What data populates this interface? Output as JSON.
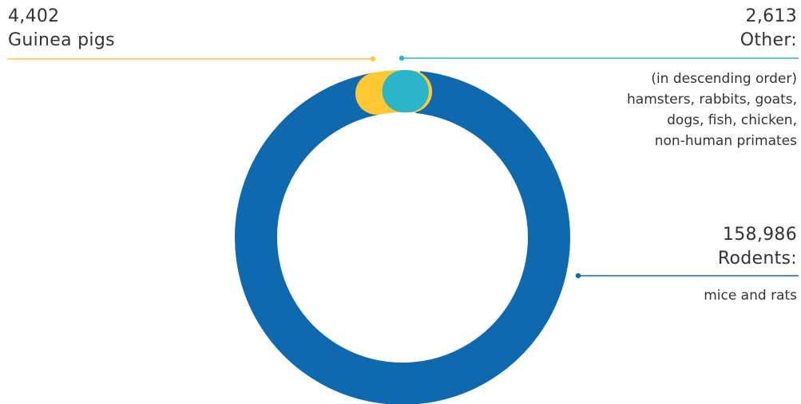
{
  "chart_data": {
    "type": "pie",
    "variant": "donut",
    "slices": [
      {
        "key": "rodents",
        "value": 158986,
        "value_label": "158,986",
        "name": "Rodents:",
        "description": "mice and rats",
        "color": "#0f69af"
      },
      {
        "key": "guinea_pigs",
        "value": 4402,
        "value_label": "4,402",
        "name": "Guinea pigs",
        "color": "#ffc832"
      },
      {
        "key": "other",
        "value": 2613,
        "value_label": "2,613",
        "name": "Other:",
        "description_lines": [
          "(in descending order)",
          "hamsters, rabbits, goats,",
          "dogs, fish, chicken,",
          "non-human primates"
        ],
        "color": "#2bb5c8"
      }
    ],
    "legend": "callouts"
  }
}
